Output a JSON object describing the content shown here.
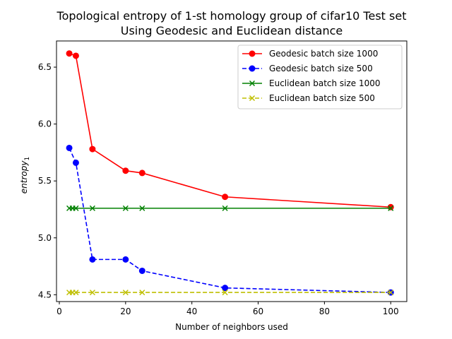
{
  "chart_data": {
    "type": "line",
    "title": "Topological entropy of 1-st homology group of cifar10 Test set",
    "subtitle": "Using Geodesic and Euclidean distance",
    "xlabel": "Number of neighbors used",
    "ylabel_main": "entropy",
    "ylabel_sub": "1",
    "xlim": [
      -0.85,
      104.85
    ],
    "ylim": [
      4.44,
      6.73
    ],
    "xticks": [
      0,
      20,
      40,
      60,
      80,
      100
    ],
    "yticks": [
      4.5,
      5.0,
      5.5,
      6.0,
      6.5
    ],
    "legend_position": "top-right",
    "series": [
      {
        "name": "Geodesic batch size 1000",
        "color": "#ff0000",
        "linestyle": "solid",
        "marker": "circle",
        "x": [
          3,
          5,
          10,
          20,
          25,
          50,
          100
        ],
        "y": [
          6.62,
          6.6,
          5.78,
          5.59,
          5.57,
          5.36,
          5.27
        ]
      },
      {
        "name": "Geodesic batch size 500",
        "color": "#0000ff",
        "linestyle": "dashed",
        "marker": "circle",
        "x": [
          3,
          5,
          10,
          20,
          25,
          50,
          100
        ],
        "y": [
          5.79,
          5.66,
          4.81,
          4.81,
          4.71,
          4.56,
          4.52
        ]
      },
      {
        "name": "Euclidean batch size 1000",
        "color": "#008000",
        "linestyle": "solid",
        "marker": "x",
        "x": [
          3,
          4,
          5,
          10,
          20,
          25,
          50,
          100
        ],
        "y": [
          5.26,
          5.26,
          5.26,
          5.26,
          5.26,
          5.26,
          5.26,
          5.26
        ]
      },
      {
        "name": "Euclidean batch size 500",
        "color": "#bfbf00",
        "linestyle": "dashed",
        "marker": "x",
        "x": [
          3,
          4,
          5,
          10,
          20,
          25,
          50,
          100
        ],
        "y": [
          4.52,
          4.52,
          4.52,
          4.52,
          4.52,
          4.52,
          4.52,
          4.52
        ]
      }
    ]
  }
}
